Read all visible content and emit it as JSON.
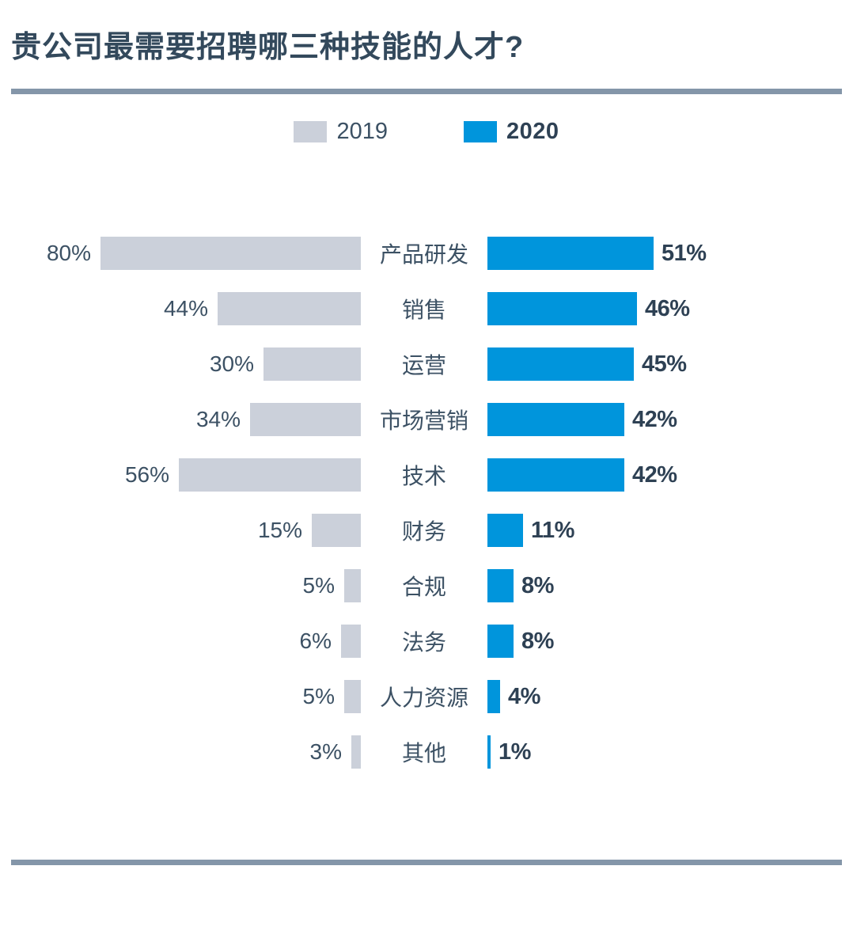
{
  "title": "贵公司最需要招聘哪三种技能的人才?",
  "legend": [
    {
      "label": "2019",
      "color": "#cbd0da",
      "bold": false
    },
    {
      "label": "2020",
      "color": "#0095dc",
      "bold": true
    }
  ],
  "colors": {
    "bar_2019": "#cbd0da",
    "bar_2020": "#0095dc",
    "title_text": "#33495c",
    "label_text": "#3c5164",
    "value_bold_text": "#2e4154",
    "divider": "#8496a9"
  },
  "chart_data": {
    "type": "bar",
    "orientation": "horizontal-diverging",
    "title": "贵公司最需要招聘哪三种技能的人才?",
    "categories": [
      "产品研发",
      "销售",
      "运营",
      "市场营销",
      "技术",
      "财务",
      "合规",
      "法务",
      "人力资源",
      "其他"
    ],
    "series": [
      {
        "name": "2019",
        "color": "#cbd0da",
        "values": [
          80,
          44,
          30,
          34,
          56,
          15,
          5,
          6,
          5,
          3
        ]
      },
      {
        "name": "2020",
        "color": "#0095dc",
        "values": [
          51,
          46,
          45,
          42,
          42,
          11,
          8,
          8,
          4,
          1
        ]
      }
    ],
    "value_suffix": "%",
    "xlim": [
      0,
      100
    ],
    "grid": false,
    "legend_position": "top-center",
    "value_labels": "outside-ends"
  }
}
